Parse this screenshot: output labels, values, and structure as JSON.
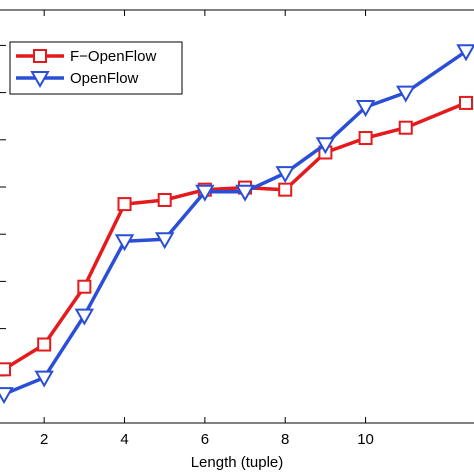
{
  "chart_data": {
    "type": "line",
    "title": "",
    "xlabel": "Length (tuple)",
    "ylabel": "",
    "xlim": [
      1,
      12.5
    ],
    "ylim": [
      0,
      1
    ],
    "x_ticks": [
      2,
      4,
      6,
      8,
      10
    ],
    "grid": false,
    "legend_position": "top-left",
    "x": [
      1,
      2,
      3,
      4,
      5,
      6,
      7,
      8,
      9,
      10,
      11,
      12.5
    ],
    "series": [
      {
        "name": "F−OpenFlow",
        "color": "#e41a1c",
        "marker": "square",
        "values": [
          0.13,
          0.19,
          0.33,
          0.53,
          0.54,
          0.565,
          0.57,
          0.565,
          0.655,
          0.69,
          0.715,
          0.775
        ]
      },
      {
        "name": "OpenFlow",
        "color": "#2a4fd6",
        "marker": "triangle-down",
        "values": [
          0.07,
          0.11,
          0.26,
          0.44,
          0.445,
          0.56,
          0.56,
          0.605,
          0.675,
          0.765,
          0.8,
          0.9
        ]
      }
    ]
  }
}
